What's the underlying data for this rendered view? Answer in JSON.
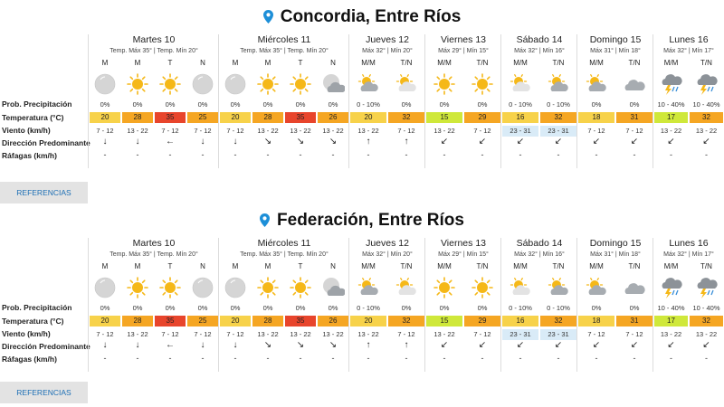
{
  "labels": {
    "precip": "Prob. Precipitación",
    "temp": "Temperatura (°C)",
    "wind": "Viento (km/h)",
    "dir": "Dirección Predominante",
    "gust": "Ráfagas (km/h)"
  },
  "colors": {
    "temp_yellow": "#f7d24a",
    "temp_orange": "#f5a623",
    "temp_red": "#e8452c",
    "temp_green": "#cfe83a",
    "wind_highlight": "#d9ebf7",
    "accent_blue": "#1d6fb5"
  },
  "locations": [
    {
      "name": "Concordia, Entre Ríos",
      "pin_icon": "location-pin-icon",
      "button": "REFERENCIAS",
      "days": [
        {
          "name": "Martes 10",
          "temps": "Temp. Máx 35° | Temp. Mín 20°",
          "periods": [
            {
              "label": "M",
              "icon": "cloudy-moon-icon",
              "precip": "0%",
              "temp": "20",
              "temp_color": "#f7d24a",
              "wind": "7 - 12",
              "wind_hl": false,
              "dir": "↓",
              "gust": "-"
            },
            {
              "label": "M",
              "icon": "sun-icon",
              "precip": "0%",
              "temp": "28",
              "temp_color": "#f5a623",
              "wind": "13 - 22",
              "wind_hl": false,
              "dir": "↓",
              "gust": "-"
            },
            {
              "label": "T",
              "icon": "sun-icon",
              "precip": "0%",
              "temp": "35",
              "temp_color": "#e8452c",
              "wind": "7 - 12",
              "wind_hl": false,
              "dir": "←",
              "gust": "-"
            },
            {
              "label": "N",
              "icon": "cloudy-moon-icon",
              "precip": "0%",
              "temp": "25",
              "temp_color": "#f5a623",
              "wind": "7 - 12",
              "wind_hl": false,
              "dir": "↓",
              "gust": "-"
            }
          ]
        },
        {
          "name": "Miércoles 11",
          "temps": "Temp. Máx 35° | Temp. Mín 20°",
          "periods": [
            {
              "label": "M",
              "icon": "cloudy-moon-icon",
              "precip": "0%",
              "temp": "20",
              "temp_color": "#f7d24a",
              "wind": "7 - 12",
              "wind_hl": false,
              "dir": "↓",
              "gust": "-"
            },
            {
              "label": "M",
              "icon": "sun-icon",
              "precip": "0%",
              "temp": "28",
              "temp_color": "#f5a623",
              "wind": "13 - 22",
              "wind_hl": false,
              "dir": "↘",
              "gust": "-"
            },
            {
              "label": "T",
              "icon": "sun-icon",
              "precip": "0%",
              "temp": "35",
              "temp_color": "#e8452c",
              "wind": "13 - 22",
              "wind_hl": false,
              "dir": "↘",
              "gust": "-"
            },
            {
              "label": "N",
              "icon": "cloud-moon-icon",
              "precip": "0%",
              "temp": "26",
              "temp_color": "#f5a623",
              "wind": "13 - 22",
              "wind_hl": false,
              "dir": "↘",
              "gust": "-"
            }
          ]
        },
        {
          "name": "Jueves 12",
          "temps": "Máx 32° | Mín 20°",
          "periods": [
            {
              "label": "M/M",
              "icon": "partly-cloudy-icon",
              "precip": "0 - 10%",
              "temp": "20",
              "temp_color": "#f7d24a",
              "wind": "13 - 22",
              "wind_hl": false,
              "dir": "↑",
              "gust": "-"
            },
            {
              "label": "T/N",
              "icon": "partly-cloudy-sun-icon",
              "precip": "0%",
              "temp": "32",
              "temp_color": "#f5a623",
              "wind": "7 - 12",
              "wind_hl": false,
              "dir": "↑",
              "gust": "-"
            }
          ]
        },
        {
          "name": "Viernes 13",
          "temps": "Máx 29° | Mín 15°",
          "periods": [
            {
              "label": "M/M",
              "icon": "sun-icon",
              "precip": "0%",
              "temp": "15",
              "temp_color": "#cfe83a",
              "wind": "13 - 22",
              "wind_hl": false,
              "dir": "↙",
              "gust": "-"
            },
            {
              "label": "T/N",
              "icon": "sun-icon",
              "precip": "0%",
              "temp": "29",
              "temp_color": "#f5a623",
              "wind": "7 - 12",
              "wind_hl": false,
              "dir": "↙",
              "gust": "-"
            }
          ]
        },
        {
          "name": "Sábado 14",
          "temps": "Máx 32° | Mín 16°",
          "periods": [
            {
              "label": "M/M",
              "icon": "partly-cloudy-sun-icon",
              "precip": "0 - 10%",
              "temp": "16",
              "temp_color": "#f7d24a",
              "wind": "23 - 31",
              "wind_hl": true,
              "dir": "↙",
              "gust": "-"
            },
            {
              "label": "T/N",
              "icon": "partly-cloudy-icon",
              "precip": "0 - 10%",
              "temp": "32",
              "temp_color": "#f5a623",
              "wind": "23 - 31",
              "wind_hl": true,
              "dir": "↙",
              "gust": "-"
            }
          ]
        },
        {
          "name": "Domingo 15",
          "temps": "Máx 31° | Mín 18°",
          "periods": [
            {
              "label": "M/M",
              "icon": "partly-cloudy-icon",
              "precip": "0%",
              "temp": "18",
              "temp_color": "#f7d24a",
              "wind": "7 - 12",
              "wind_hl": false,
              "dir": "↙",
              "gust": "-"
            },
            {
              "label": "T/N",
              "icon": "cloudy-icon",
              "precip": "0%",
              "temp": "31",
              "temp_color": "#f5a623",
              "wind": "7 - 12",
              "wind_hl": false,
              "dir": "↙",
              "gust": "-"
            }
          ]
        },
        {
          "name": "Lunes 16",
          "temps": "Máx 32° | Mín 17°",
          "periods": [
            {
              "label": "M/M",
              "icon": "thunderstorm-icon",
              "precip": "10 - 40%",
              "temp": "17",
              "temp_color": "#cfe83a",
              "wind": "13 - 22",
              "wind_hl": false,
              "dir": "↙",
              "gust": "-"
            },
            {
              "label": "T/N",
              "icon": "thunderstorm-icon",
              "precip": "10 - 40%",
              "temp": "32",
              "temp_color": "#f5a623",
              "wind": "13 - 22",
              "wind_hl": false,
              "dir": "↙",
              "gust": "-"
            }
          ]
        }
      ]
    },
    {
      "name": "Federación, Entre Ríos",
      "pin_icon": "location-pin-icon",
      "button": "REFERENCIAS",
      "days": [
        {
          "name": "Martes 10",
          "temps": "Temp. Máx 35° | Temp. Mín 20°",
          "periods": [
            {
              "label": "M",
              "icon": "cloudy-moon-icon",
              "precip": "0%",
              "temp": "20",
              "temp_color": "#f7d24a",
              "wind": "7 - 12",
              "wind_hl": false,
              "dir": "↓",
              "gust": "-"
            },
            {
              "label": "M",
              "icon": "sun-icon",
              "precip": "0%",
              "temp": "28",
              "temp_color": "#f5a623",
              "wind": "13 - 22",
              "wind_hl": false,
              "dir": "↓",
              "gust": "-"
            },
            {
              "label": "T",
              "icon": "sun-icon",
              "precip": "0%",
              "temp": "35",
              "temp_color": "#e8452c",
              "wind": "7 - 12",
              "wind_hl": false,
              "dir": "←",
              "gust": "-"
            },
            {
              "label": "N",
              "icon": "cloudy-moon-icon",
              "precip": "0%",
              "temp": "25",
              "temp_color": "#f5a623",
              "wind": "7 - 12",
              "wind_hl": false,
              "dir": "↓",
              "gust": "-"
            }
          ]
        },
        {
          "name": "Miércoles 11",
          "temps": "Temp. Máx 35° | Temp. Mín 20°",
          "periods": [
            {
              "label": "M",
              "icon": "cloudy-moon-icon",
              "precip": "0%",
              "temp": "20",
              "temp_color": "#f7d24a",
              "wind": "7 - 12",
              "wind_hl": false,
              "dir": "↓",
              "gust": "-"
            },
            {
              "label": "M",
              "icon": "sun-icon",
              "precip": "0%",
              "temp": "28",
              "temp_color": "#f5a623",
              "wind": "13 - 22",
              "wind_hl": false,
              "dir": "↘",
              "gust": "-"
            },
            {
              "label": "T",
              "icon": "sun-icon",
              "precip": "0%",
              "temp": "35",
              "temp_color": "#e8452c",
              "wind": "13 - 22",
              "wind_hl": false,
              "dir": "↘",
              "gust": "-"
            },
            {
              "label": "N",
              "icon": "cloud-moon-icon",
              "precip": "0%",
              "temp": "26",
              "temp_color": "#f5a623",
              "wind": "13 - 22",
              "wind_hl": false,
              "dir": "↘",
              "gust": "-"
            }
          ]
        },
        {
          "name": "Jueves 12",
          "temps": "Máx 32° | Mín 20°",
          "periods": [
            {
              "label": "M/M",
              "icon": "partly-cloudy-icon",
              "precip": "0 - 10%",
              "temp": "20",
              "temp_color": "#f7d24a",
              "wind": "13 - 22",
              "wind_hl": false,
              "dir": "↑",
              "gust": "-"
            },
            {
              "label": "T/N",
              "icon": "partly-cloudy-sun-icon",
              "precip": "0%",
              "temp": "32",
              "temp_color": "#f5a623",
              "wind": "7 - 12",
              "wind_hl": false,
              "dir": "↑",
              "gust": "-"
            }
          ]
        },
        {
          "name": "Viernes 13",
          "temps": "Máx 29° | Mín 15°",
          "periods": [
            {
              "label": "M/M",
              "icon": "sun-icon",
              "precip": "0%",
              "temp": "15",
              "temp_color": "#cfe83a",
              "wind": "13 - 22",
              "wind_hl": false,
              "dir": "↙",
              "gust": "-"
            },
            {
              "label": "T/N",
              "icon": "sun-icon",
              "precip": "0%",
              "temp": "29",
              "temp_color": "#f5a623",
              "wind": "7 - 12",
              "wind_hl": false,
              "dir": "↙",
              "gust": "-"
            }
          ]
        },
        {
          "name": "Sábado 14",
          "temps": "Máx 32° | Mín 16°",
          "periods": [
            {
              "label": "M/M",
              "icon": "partly-cloudy-sun-icon",
              "precip": "0 - 10%",
              "temp": "16",
              "temp_color": "#f7d24a",
              "wind": "23 - 31",
              "wind_hl": true,
              "dir": "↙",
              "gust": "-"
            },
            {
              "label": "T/N",
              "icon": "partly-cloudy-icon",
              "precip": "0 - 10%",
              "temp": "32",
              "temp_color": "#f5a623",
              "wind": "23 - 31",
              "wind_hl": true,
              "dir": "↙",
              "gust": "-"
            }
          ]
        },
        {
          "name": "Domingo 15",
          "temps": "Máx 31° | Mín 18°",
          "periods": [
            {
              "label": "M/M",
              "icon": "partly-cloudy-icon",
              "precip": "0%",
              "temp": "18",
              "temp_color": "#f7d24a",
              "wind": "7 - 12",
              "wind_hl": false,
              "dir": "↙",
              "gust": "-"
            },
            {
              "label": "T/N",
              "icon": "cloudy-icon",
              "precip": "0%",
              "temp": "31",
              "temp_color": "#f5a623",
              "wind": "7 - 12",
              "wind_hl": false,
              "dir": "↙",
              "gust": "-"
            }
          ]
        },
        {
          "name": "Lunes 16",
          "temps": "Máx 32° | Mín 17°",
          "periods": [
            {
              "label": "M/M",
              "icon": "thunderstorm-icon",
              "precip": "10 - 40%",
              "temp": "17",
              "temp_color": "#cfe83a",
              "wind": "13 - 22",
              "wind_hl": false,
              "dir": "↙",
              "gust": "-"
            },
            {
              "label": "T/N",
              "icon": "thunderstorm-icon",
              "precip": "10 - 40%",
              "temp": "32",
              "temp_color": "#f5a623",
              "wind": "13 - 22",
              "wind_hl": false,
              "dir": "↙",
              "gust": "-"
            }
          ]
        }
      ]
    }
  ]
}
